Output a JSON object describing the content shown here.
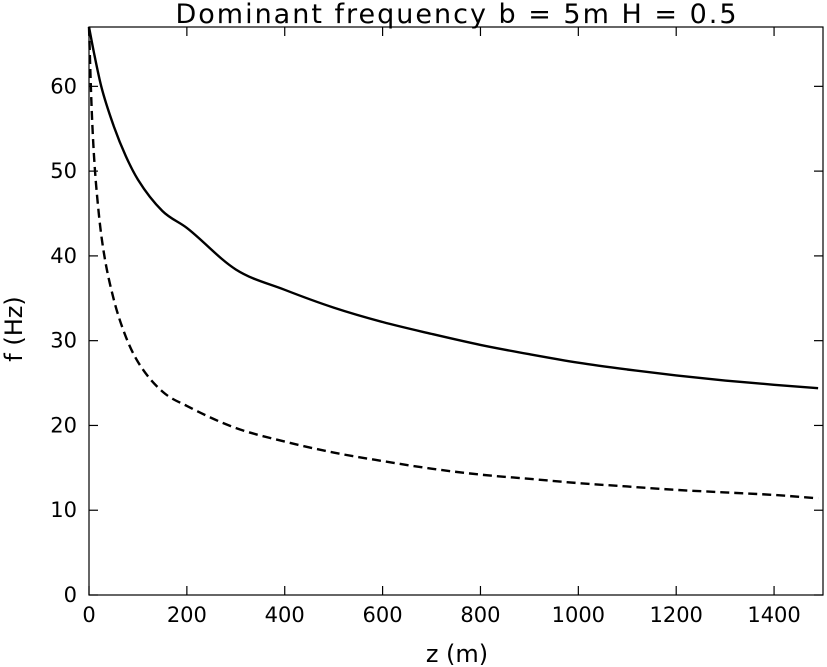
{
  "chart_data": {
    "type": "line",
    "title": "Dominant frequency  b = 5m  H = 0.5",
    "xlabel": "z (m)",
    "ylabel": "f (Hz)",
    "xlim": [
      0,
      1500
    ],
    "ylim": [
      0,
      67
    ],
    "xticks": [
      "0",
      "200",
      "400",
      "600",
      "800",
      "1000",
      "1200",
      "1400"
    ],
    "yticks": [
      "0",
      "10",
      "20",
      "30",
      "40",
      "50",
      "60"
    ],
    "grid": false,
    "legend": "none",
    "series": [
      {
        "style": "solid",
        "x": [
          0,
          10,
          25,
          50,
          75,
          100,
          150,
          200,
          300,
          400,
          500,
          600,
          700,
          800,
          900,
          1000,
          1100,
          1200,
          1300,
          1400,
          1490
        ],
        "y": [
          67.0,
          64.0,
          60.0,
          55.4,
          51.8,
          49.0,
          45.3,
          43.3,
          38.4,
          36.0,
          33.9,
          32.2,
          30.8,
          29.5,
          28.4,
          27.4,
          26.6,
          25.9,
          25.3,
          24.8,
          24.4
        ]
      },
      {
        "style": "dashed",
        "x": [
          0,
          5,
          10,
          20,
          30,
          50,
          75,
          100,
          150,
          200,
          300,
          400,
          500,
          600,
          700,
          800,
          900,
          1000,
          1100,
          1200,
          1300,
          1400,
          1490
        ],
        "y": [
          67.0,
          58.0,
          52.0,
          45.0,
          40.5,
          35.0,
          30.5,
          27.5,
          24.0,
          22.3,
          19.7,
          18.1,
          16.8,
          15.8,
          14.9,
          14.2,
          13.7,
          13.2,
          12.8,
          12.4,
          12.1,
          11.8,
          11.4
        ]
      }
    ]
  }
}
